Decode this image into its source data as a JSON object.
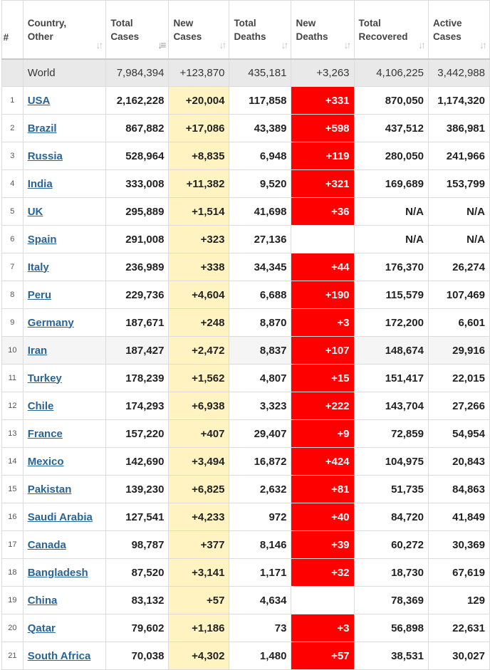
{
  "headers": [
    {
      "key": "num",
      "label": "#",
      "sortable": false
    },
    {
      "key": "country",
      "label": "Country,\nOther",
      "sortable": true
    },
    {
      "key": "total_cases",
      "label": "Total\nCases",
      "sortable": true,
      "sorted": true
    },
    {
      "key": "new_cases",
      "label": "New\nCases",
      "sortable": true
    },
    {
      "key": "total_deaths",
      "label": "Total\nDeaths",
      "sortable": true
    },
    {
      "key": "new_deaths",
      "label": "New\nDeaths",
      "sortable": true
    },
    {
      "key": "total_recovered",
      "label": "Total\nRecovered",
      "sortable": true
    },
    {
      "key": "active_cases",
      "label": "Active\nCases",
      "sortable": true
    }
  ],
  "world": {
    "country": "World",
    "total_cases": "7,984,394",
    "new_cases": "+123,870",
    "total_deaths": "435,181",
    "new_deaths": "+3,263",
    "total_recovered": "4,106,225",
    "active_cases": "3,442,988"
  },
  "rows": [
    {
      "num": "1",
      "country": "USA",
      "total_cases": "2,162,228",
      "new_cases": "+20,004",
      "total_deaths": "117,858",
      "new_deaths": "+331",
      "total_recovered": "870,050",
      "active_cases": "1,174,320"
    },
    {
      "num": "2",
      "country": "Brazil",
      "total_cases": "867,882",
      "new_cases": "+17,086",
      "total_deaths": "43,389",
      "new_deaths": "+598",
      "total_recovered": "437,512",
      "active_cases": "386,981"
    },
    {
      "num": "3",
      "country": "Russia",
      "total_cases": "528,964",
      "new_cases": "+8,835",
      "total_deaths": "6,948",
      "new_deaths": "+119",
      "total_recovered": "280,050",
      "active_cases": "241,966"
    },
    {
      "num": "4",
      "country": "India",
      "total_cases": "333,008",
      "new_cases": "+11,382",
      "total_deaths": "9,520",
      "new_deaths": "+321",
      "total_recovered": "169,689",
      "active_cases": "153,799"
    },
    {
      "num": "5",
      "country": "UK",
      "total_cases": "295,889",
      "new_cases": "+1,514",
      "total_deaths": "41,698",
      "new_deaths": "+36",
      "total_recovered": "N/A",
      "active_cases": "N/A"
    },
    {
      "num": "6",
      "country": "Spain",
      "total_cases": "291,008",
      "new_cases": "+323",
      "total_deaths": "27,136",
      "new_deaths": "",
      "total_recovered": "N/A",
      "active_cases": "N/A"
    },
    {
      "num": "7",
      "country": "Italy",
      "total_cases": "236,989",
      "new_cases": "+338",
      "total_deaths": "34,345",
      "new_deaths": "+44",
      "total_recovered": "176,370",
      "active_cases": "26,274"
    },
    {
      "num": "8",
      "country": "Peru",
      "total_cases": "229,736",
      "new_cases": "+4,604",
      "total_deaths": "6,688",
      "new_deaths": "+190",
      "total_recovered": "115,579",
      "active_cases": "107,469"
    },
    {
      "num": "9",
      "country": "Germany",
      "total_cases": "187,671",
      "new_cases": "+248",
      "total_deaths": "8,870",
      "new_deaths": "+3",
      "total_recovered": "172,200",
      "active_cases": "6,601"
    },
    {
      "num": "10",
      "country": "Iran",
      "total_cases": "187,427",
      "new_cases": "+2,472",
      "total_deaths": "8,837",
      "new_deaths": "+107",
      "total_recovered": "148,674",
      "active_cases": "29,916",
      "highlight": true
    },
    {
      "num": "11",
      "country": "Turkey",
      "total_cases": "178,239",
      "new_cases": "+1,562",
      "total_deaths": "4,807",
      "new_deaths": "+15",
      "total_recovered": "151,417",
      "active_cases": "22,015"
    },
    {
      "num": "12",
      "country": "Chile",
      "total_cases": "174,293",
      "new_cases": "+6,938",
      "total_deaths": "3,323",
      "new_deaths": "+222",
      "total_recovered": "143,704",
      "active_cases": "27,266"
    },
    {
      "num": "13",
      "country": "France",
      "total_cases": "157,220",
      "new_cases": "+407",
      "total_deaths": "29,407",
      "new_deaths": "+9",
      "total_recovered": "72,859",
      "active_cases": "54,954"
    },
    {
      "num": "14",
      "country": "Mexico",
      "total_cases": "142,690",
      "new_cases": "+3,494",
      "total_deaths": "16,872",
      "new_deaths": "+424",
      "total_recovered": "104,975",
      "active_cases": "20,843"
    },
    {
      "num": "15",
      "country": "Pakistan",
      "total_cases": "139,230",
      "new_cases": "+6,825",
      "total_deaths": "2,632",
      "new_deaths": "+81",
      "total_recovered": "51,735",
      "active_cases": "84,863"
    },
    {
      "num": "16",
      "country": "Saudi Arabia",
      "total_cases": "127,541",
      "new_cases": "+4,233",
      "total_deaths": "972",
      "new_deaths": "+40",
      "total_recovered": "84,720",
      "active_cases": "41,849"
    },
    {
      "num": "17",
      "country": "Canada",
      "total_cases": "98,787",
      "new_cases": "+377",
      "total_deaths": "8,146",
      "new_deaths": "+39",
      "total_recovered": "60,272",
      "active_cases": "30,369"
    },
    {
      "num": "18",
      "country": "Bangladesh",
      "total_cases": "87,520",
      "new_cases": "+3,141",
      "total_deaths": "1,171",
      "new_deaths": "+32",
      "total_recovered": "18,730",
      "active_cases": "67,619"
    },
    {
      "num": "19",
      "country": "China",
      "total_cases": "83,132",
      "new_cases": "+57",
      "total_deaths": "4,634",
      "new_deaths": "",
      "total_recovered": "78,369",
      "active_cases": "129"
    },
    {
      "num": "20",
      "country": "Qatar",
      "total_cases": "79,602",
      "new_cases": "+1,186",
      "total_deaths": "73",
      "new_deaths": "+3",
      "total_recovered": "56,898",
      "active_cases": "22,631"
    },
    {
      "num": "21",
      "country": "South Africa",
      "total_cases": "70,038",
      "new_cases": "+4,302",
      "total_deaths": "1,480",
      "new_deaths": "+57",
      "total_recovered": "38,531",
      "active_cases": "30,027"
    }
  ],
  "colors": {
    "new_cases_bg": "#fff3c2",
    "new_deaths_bg": "#ff0000",
    "world_row_bg": "#e9e9e9",
    "link": "#2a6496"
  },
  "icons": {
    "sort": "sort-arrows-icon",
    "sort_active": "sort-descending-icon"
  }
}
